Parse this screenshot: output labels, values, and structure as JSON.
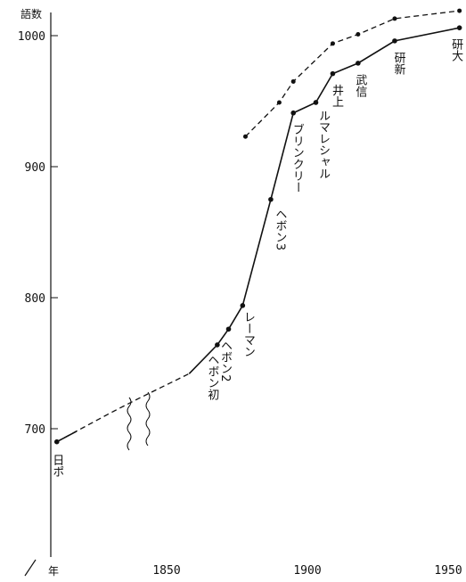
{
  "chart_data": {
    "type": "line",
    "ylabel": "語数",
    "xlabel": "年",
    "x_ticks": [
      1850,
      1900,
      1950
    ],
    "y_ticks": [
      700,
      800,
      900,
      1000
    ],
    "y_tick_labels": [
      "700",
      "800",
      "900",
      "1000"
    ],
    "x_tick_labels": [
      "1850",
      "1900",
      "1950"
    ],
    "xlim": [
      1790,
      1958
    ],
    "ylim": [
      600,
      1020
    ],
    "grid": false,
    "series": [
      {
        "style": "solid",
        "points": [
          {
            "x": 1811,
            "y": 690
          },
          {
            "x": 1868,
            "y": 764
          },
          {
            "x": 1872,
            "y": 776
          },
          {
            "x": 1877,
            "y": 794
          },
          {
            "x": 1887,
            "y": 875
          },
          {
            "x": 1895,
            "y": 941
          },
          {
            "x": 1903,
            "y": 949
          },
          {
            "x": 1909,
            "y": 971
          },
          {
            "x": 1918,
            "y": 979
          },
          {
            "x": 1931,
            "y": 996
          },
          {
            "x": 1954,
            "y": 1006
          }
        ]
      },
      {
        "style": "dashed",
        "points": [
          {
            "x": 1878,
            "y": 923
          },
          {
            "x": 1890,
            "y": 949
          },
          {
            "x": 1895,
            "y": 965
          },
          {
            "x": 1909,
            "y": 994
          },
          {
            "x": 1918,
            "y": 1001
          },
          {
            "x": 1931,
            "y": 1013
          },
          {
            "x": 1954,
            "y": 1019
          }
        ]
      }
    ],
    "broken_segment": [
      {
        "x": 1811,
        "y": 690
      },
      {
        "x": 1830,
        "y": 712
      },
      {
        "x": 1840,
        "y": 723
      },
      {
        "x": 1858,
        "y": 742
      }
    ],
    "annotations": [
      {
        "text": "日ポ",
        "x": 1811,
        "y": 690
      },
      {
        "text": "ヘボン初",
        "x": 1868,
        "y": 764
      },
      {
        "text": "ヘボン2",
        "x": 1872,
        "y": 776
      },
      {
        "text": "レーマン",
        "x": 1877,
        "y": 794
      },
      {
        "text": "ヘボン3",
        "x": 1887,
        "y": 875
      },
      {
        "text": "ブリンクリー",
        "x": 1895,
        "y": 941
      },
      {
        "text": "ルマレシャル",
        "x": 1903,
        "y": 949
      },
      {
        "text": "井上",
        "x": 1909,
        "y": 971
      },
      {
        "text": "武信",
        "x": 1918,
        "y": 979
      },
      {
        "text": "研新",
        "x": 1931,
        "y": 996
      },
      {
        "text": "研大",
        "x": 1954,
        "y": 1006
      }
    ]
  }
}
